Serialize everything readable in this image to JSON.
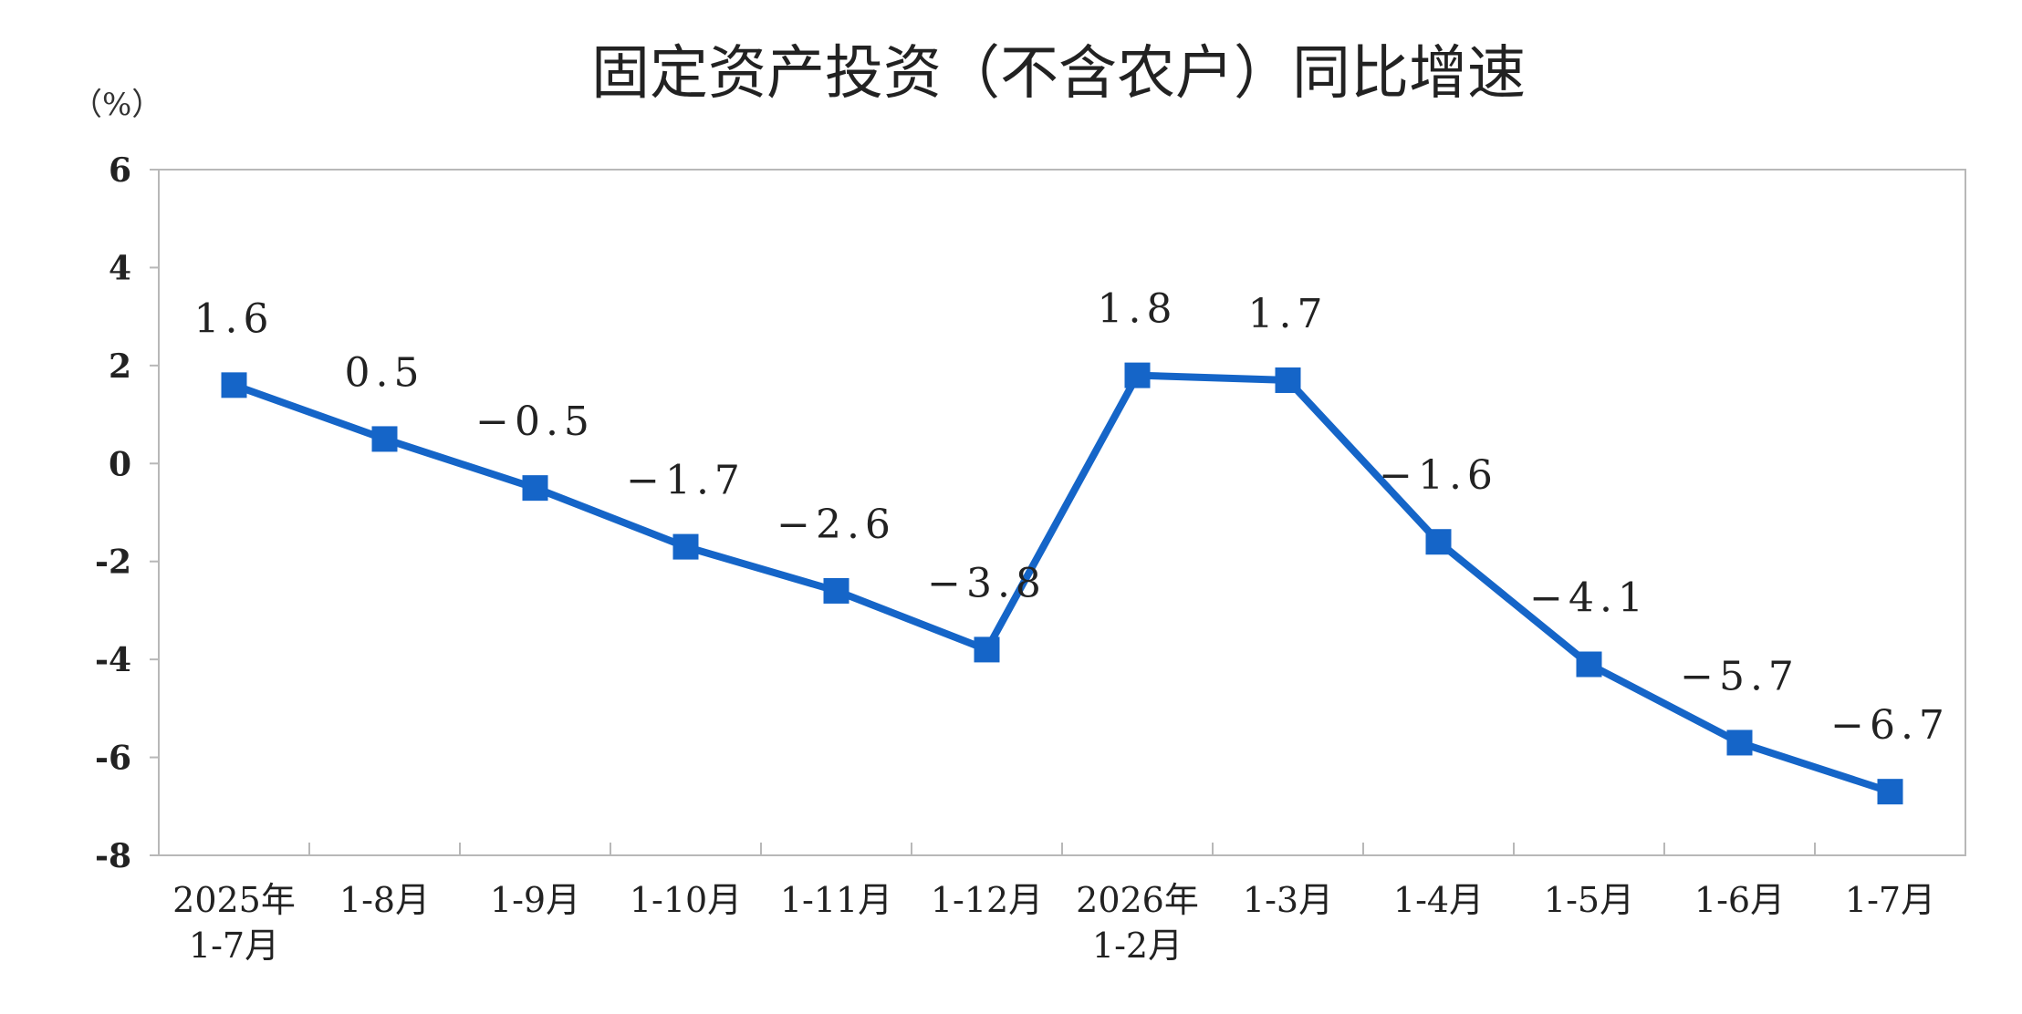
{
  "chart_data": {
    "type": "line",
    "title": "固定资产投资（不含农户）同比增速",
    "ylabel": "（%）",
    "xlabel": "",
    "ylim": [
      -8,
      6
    ],
    "yticks": [
      "6",
      "4",
      "2",
      "0",
      "-2",
      "-4",
      "-6",
      "-8"
    ],
    "grid": false,
    "categories": [
      [
        "2025年",
        "1-7月"
      ],
      [
        "1-8月"
      ],
      [
        "1-9月"
      ],
      [
        "1-10月"
      ],
      [
        "1-11月"
      ],
      [
        "1-12月"
      ],
      [
        "2026年",
        "1-2月"
      ],
      [
        "1-3月"
      ],
      [
        "1-4月"
      ],
      [
        "1-5月"
      ],
      [
        "1-6月"
      ],
      [
        "1-7月"
      ]
    ],
    "data_labels": [
      "1.6",
      "0.5",
      "−0.5",
      "−1.7",
      "−2.6",
      "−3.8",
      "1.8",
      "1.7",
      "−1.6",
      "−4.1",
      "−5.7",
      "−6.7"
    ],
    "series": [
      {
        "values": [
          1.6,
          0.5,
          -0.5,
          -1.7,
          -2.6,
          -3.8,
          1.8,
          1.7,
          -1.6,
          -4.1,
          -5.7,
          -6.7
        ],
        "color": "#1565C8",
        "marker": "square"
      }
    ]
  }
}
